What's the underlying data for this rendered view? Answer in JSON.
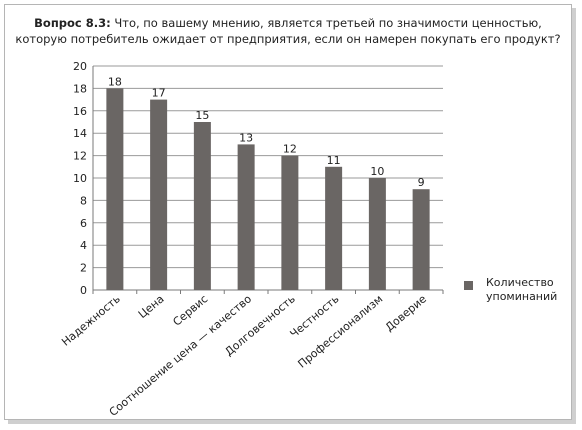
{
  "chart_data": {
    "type": "bar",
    "title_prefix": "Вопрос 8.3:",
    "title_line1": "Что, по вашему мнению, является третьей по значимости ценностью,",
    "title_line2": "которую потребитель ожидает от предприятия, если он намерен покупать его продукт?",
    "categories": [
      "Надежность",
      "Цена",
      "Сервис",
      "Соотношение цена — качество",
      "Долговечность",
      "Честность",
      "Профессионализм",
      "Доверие"
    ],
    "series": [
      {
        "name": "Количество упоминаний",
        "values": [
          18,
          17,
          15,
          13,
          12,
          11,
          10,
          9
        ]
      }
    ],
    "ylim": [
      0,
      20
    ],
    "yticks": [
      0,
      2,
      4,
      6,
      8,
      10,
      12,
      14,
      16,
      18,
      20
    ],
    "grid": true,
    "legend_position": "right",
    "bar_color": "#6a6664",
    "grid_color": "#9a9a9a"
  }
}
